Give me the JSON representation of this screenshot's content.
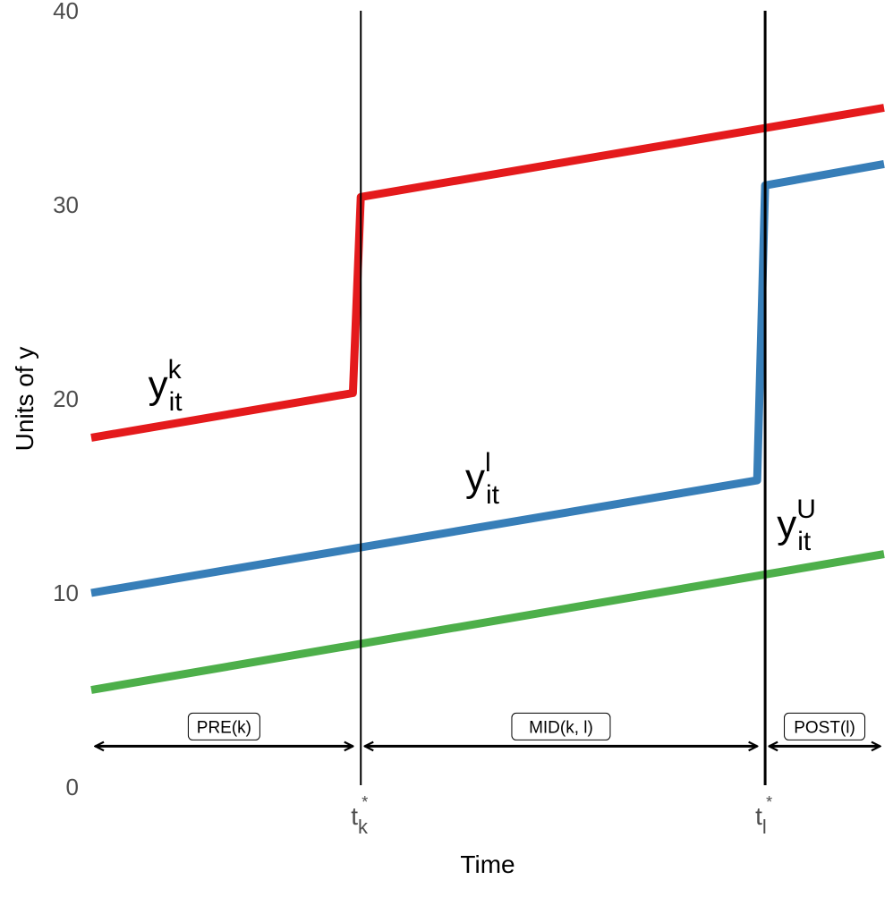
{
  "chart_data": {
    "type": "line",
    "title": "",
    "xlabel": "Time",
    "ylabel": "Units of y",
    "xlim": [
      0,
      100
    ],
    "ylim": [
      0,
      40
    ],
    "yticks": [
      0,
      10,
      20,
      30,
      40
    ],
    "grid": false,
    "legend": "none",
    "xticks": [
      {
        "x": 34,
        "base": "t",
        "sub": "k",
        "sup": "*"
      },
      {
        "x": 85,
        "base": "t",
        "sub": "l",
        "sup": "*"
      }
    ],
    "vlines": [
      34,
      85
    ],
    "series": [
      {
        "label": {
          "base": "y",
          "sub": "it",
          "sup": "k",
          "x": 10,
          "y": 20.6
        },
        "color": "#e41a1c",
        "points": [
          [
            0,
            18
          ],
          [
            33,
            20.3
          ],
          [
            34,
            30.4
          ],
          [
            100,
            35
          ]
        ]
      },
      {
        "label": {
          "base": "y",
          "sub": "it",
          "sup": "l",
          "x": 50,
          "y": 15.8
        },
        "color": "#377eb8",
        "points": [
          [
            0,
            10
          ],
          [
            84,
            15.8
          ],
          [
            85,
            31
          ],
          [
            100,
            32.1
          ]
        ]
      },
      {
        "label": {
          "base": "y",
          "sub": "it",
          "sup": "U",
          "x": 89.3,
          "y": 13.4
        },
        "color": "#4daf4a",
        "points": [
          [
            0,
            5
          ],
          [
            100,
            12
          ]
        ]
      }
    ],
    "periods": [
      {
        "label": "PRE(k)",
        "from": 0.5,
        "to": 33,
        "y": 2.1
      },
      {
        "label": "MID(k, l)",
        "from": 34.5,
        "to": 84,
        "y": 2.1
      },
      {
        "label": "POST(l)",
        "from": 85.5,
        "to": 99.5,
        "y": 2.1
      }
    ]
  }
}
